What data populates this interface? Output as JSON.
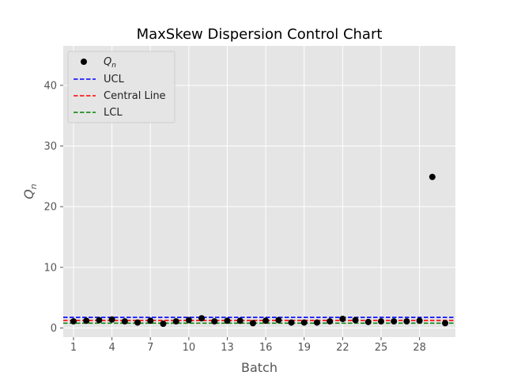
{
  "chart_data": {
    "type": "scatter",
    "title": "MaxSkew Dispersion Control Chart",
    "xlabel": "Batch",
    "ylabel": "Q",
    "ylabel_subscript": "n",
    "xlim": [
      0.2,
      30.8
    ],
    "ylim": [
      -1.5,
      46.5
    ],
    "x_ticks": [
      1,
      4,
      7,
      10,
      13,
      16,
      19,
      22,
      25,
      28
    ],
    "y_ticks": [
      0,
      10,
      20,
      30,
      40
    ],
    "grid": true,
    "legend_position": "top-left",
    "series": [
      {
        "name": "Q",
        "name_subscript": "n",
        "kind": "points",
        "color": "#000000",
        "x": [
          1,
          2,
          3,
          4,
          5,
          6,
          7,
          8,
          9,
          10,
          11,
          12,
          13,
          14,
          15,
          16,
          17,
          18,
          19,
          20,
          21,
          22,
          23,
          24,
          25,
          26,
          27,
          28,
          29,
          30
        ],
        "y": [
          1.1,
          1.2,
          1.3,
          1.4,
          1.1,
          0.9,
          1.2,
          0.7,
          1.1,
          1.3,
          1.6,
          1.1,
          1.2,
          1.2,
          0.8,
          1.2,
          1.3,
          0.9,
          0.9,
          0.9,
          1.1,
          1.5,
          1.3,
          1.0,
          1.1,
          1.1,
          1.1,
          1.2,
          24.9,
          0.8
        ]
      },
      {
        "name": "UCL",
        "kind": "hline",
        "color": "#0000ff",
        "value": 1.75
      },
      {
        "name": "Central Line",
        "kind": "hline",
        "color": "#ff0000",
        "value": 1.25
      },
      {
        "name": "LCL",
        "kind": "hline",
        "color": "#008000",
        "value": 0.8
      }
    ]
  }
}
